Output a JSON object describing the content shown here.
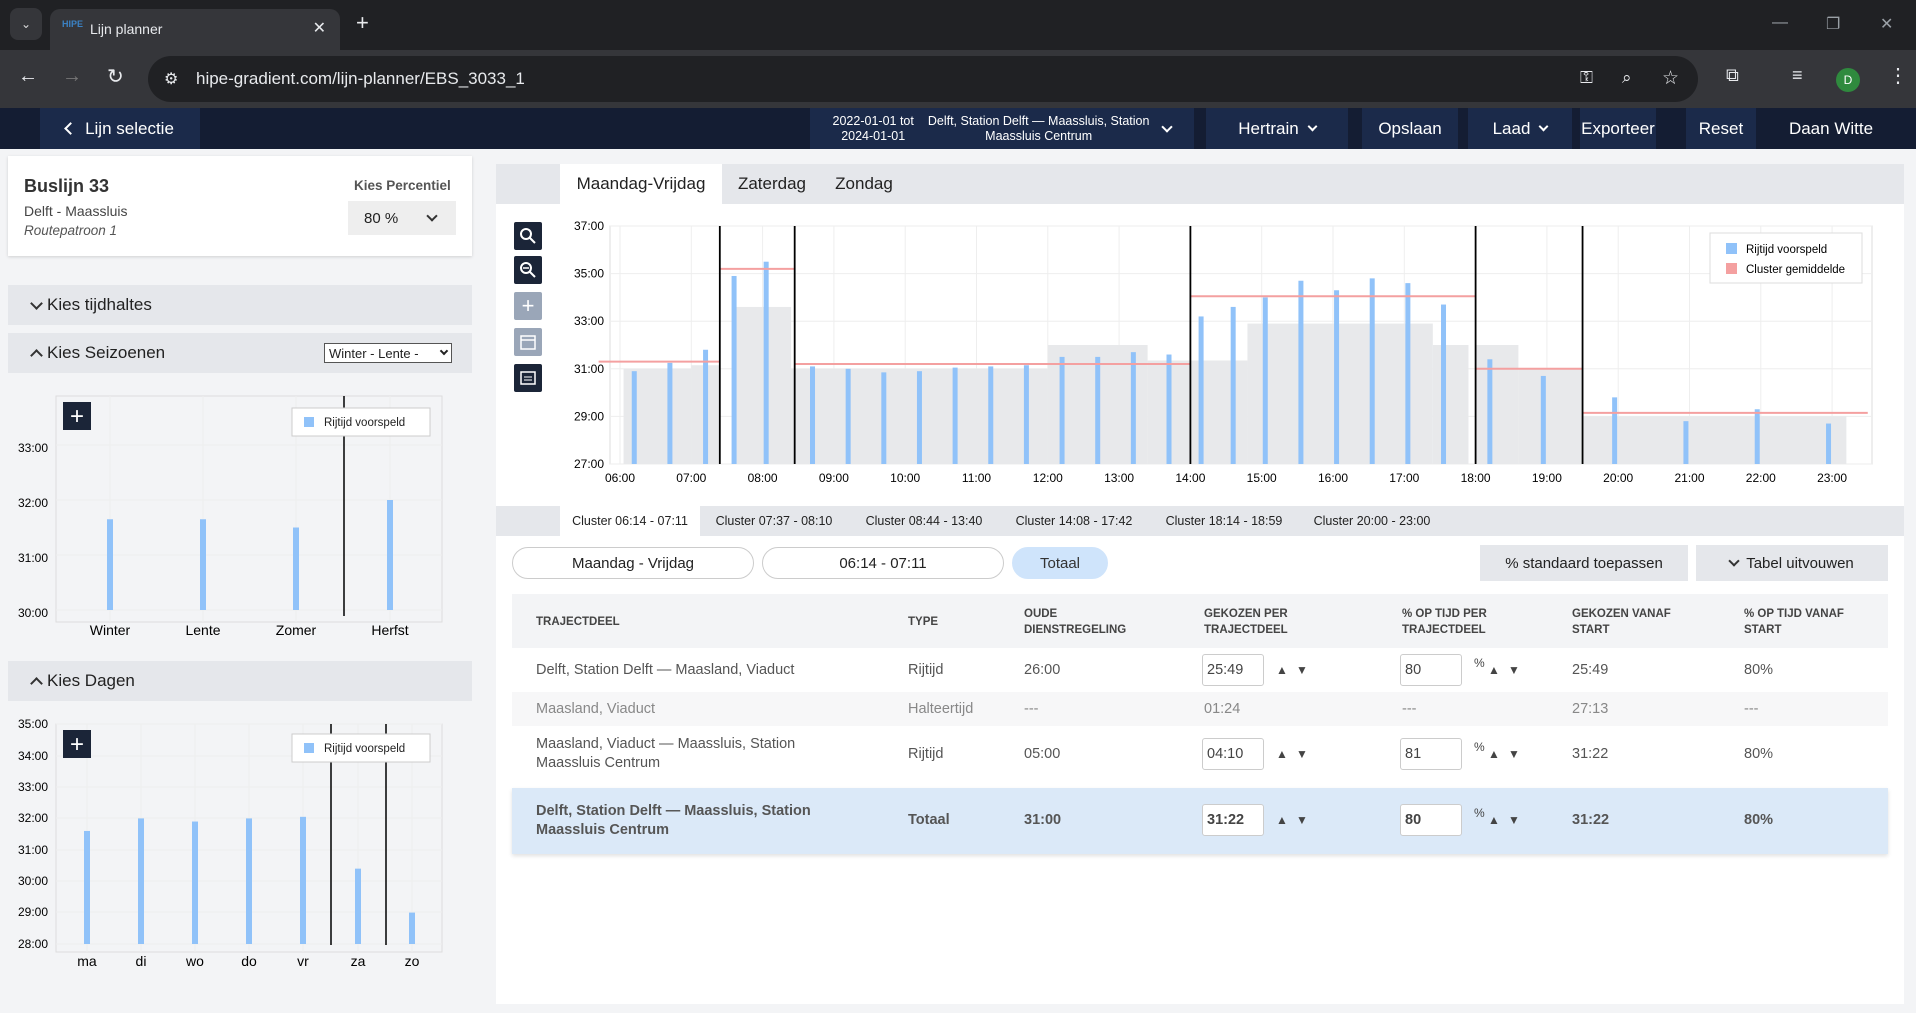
{
  "browser": {
    "tab_title": "Lijn planner",
    "url": "hipe-gradient.com/lijn-planner/EBS_3033_1",
    "profile_initial": "D",
    "tab_favicon": "HIPE"
  },
  "nav": {
    "back_label": "Lijn selectie",
    "date_range_line1": "2022-01-01 tot",
    "date_range_line2": "2024-01-01",
    "route_line1": "Delft, Station Delft — Maassluis, Station",
    "route_line2": "Maassluis Centrum",
    "hertrain": "Hertrain",
    "opslaan": "Opslaan",
    "laad": "Laad",
    "exporteer": "Exporteer",
    "reset": "Reset",
    "user": "Daan Witte"
  },
  "line_card": {
    "title": "Buslijn 33",
    "subtitle": "Delft - Maassluis",
    "pattern": "Routepatroon 1",
    "percentile_label": "Kies Percentiel",
    "percentile_value": "80 %"
  },
  "sections": {
    "stops": "Kies tijdhaltes",
    "seasons": "Kies Seizoenen",
    "seasons_select": "Winter - Lente -",
    "days": "Kies Dagen"
  },
  "seasons_chart": {
    "legend": "Rijtijd voorspeld",
    "y_ticks": [
      "33:00",
      "32:00",
      "31:00",
      "30:00"
    ],
    "categories": [
      "Winter",
      "Lente",
      "Zomer",
      "Herfst"
    ]
  },
  "days_chart": {
    "legend": "Rijtijd voorspeld",
    "y_ticks": [
      "35:00",
      "34:00",
      "33:00",
      "32:00",
      "31:00",
      "30:00",
      "29:00",
      "28:00"
    ],
    "categories": [
      "ma",
      "di",
      "wo",
      "do",
      "vr",
      "za",
      "zo"
    ]
  },
  "tabs": [
    "Maandag-Vrijdag",
    "Zaterdag",
    "Zondag"
  ],
  "main_chart": {
    "legend_pred": "Rijtijd voorspeld",
    "legend_cluster": "Cluster gemiddelde",
    "y_ticks": [
      "37:00",
      "35:00",
      "33:00",
      "31:00",
      "29:00",
      "27:00"
    ],
    "x_ticks": [
      "06:00",
      "07:00",
      "08:00",
      "09:00",
      "10:00",
      "11:00",
      "12:00",
      "13:00",
      "14:00",
      "15:00",
      "16:00",
      "17:00",
      "18:00",
      "19:00",
      "20:00",
      "21:00",
      "22:00",
      "23:00"
    ]
  },
  "chart_data": {
    "type": "bar",
    "title": "",
    "xlabel": "",
    "ylabel": "",
    "ylim": [
      "27:00",
      "37:00"
    ],
    "series": [
      {
        "name": "Rijtijd voorspeld"
      },
      {
        "name": "Cluster gemiddelde"
      }
    ],
    "colors": {
      "pred": "#90c2f9",
      "cluster": "#f4a0a0"
    }
  },
  "cluster_tabs": [
    "Cluster 06:14 - 07:11",
    "Cluster 07:37 - 08:10",
    "Cluster 08:44 - 13:40",
    "Cluster 14:08 - 17:42",
    "Cluster 18:14 - 18:59",
    "Cluster 20:00 - 23:00"
  ],
  "filters": {
    "days": "Maandag - Vrijdag",
    "cluster": "06:14 - 07:11",
    "total": "Totaal",
    "apply": "% standaard toepassen",
    "expand": "Tabel uitvouwen"
  },
  "table": {
    "headers": [
      "TRAJECTDEEL",
      "TYPE",
      "OUDE DIENSTREGELING",
      "GEKOZEN PER TRAJECTDEEL",
      "% OP TIJD PER TRAJECTDEEL",
      "GEKOZEN VANAF START",
      "% OP TIJD VANAF START"
    ],
    "rows": [
      {
        "traject": "Delft, Station Delft — Maasland, Viaduct",
        "type": "Rijtijd",
        "oud": "26:00",
        "gekozen": "25:49",
        "pct": "80",
        "vanaf": "25:49",
        "pct_start": "80%"
      },
      {
        "traject": "Maasland, Viaduct",
        "type": "Halteertijd",
        "oud": "---",
        "gekozen": "01:24",
        "pct": "---",
        "vanaf": "27:13",
        "pct_start": "---"
      },
      {
        "traject": "Maasland, Viaduct — Maassluis, Station Maassluis Centrum",
        "type": "Rijtijd",
        "oud": "05:00",
        "gekozen": "04:10",
        "pct": "81",
        "vanaf": "31:22",
        "pct_start": "80%"
      },
      {
        "traject": "Delft, Station Delft — Maassluis, Station Maassluis Centrum",
        "type": "Totaal",
        "oud": "31:00",
        "gekozen": "31:22",
        "pct": "80",
        "vanaf": "31:22",
        "pct_start": "80%"
      }
    ],
    "pct_symbol": "%"
  }
}
